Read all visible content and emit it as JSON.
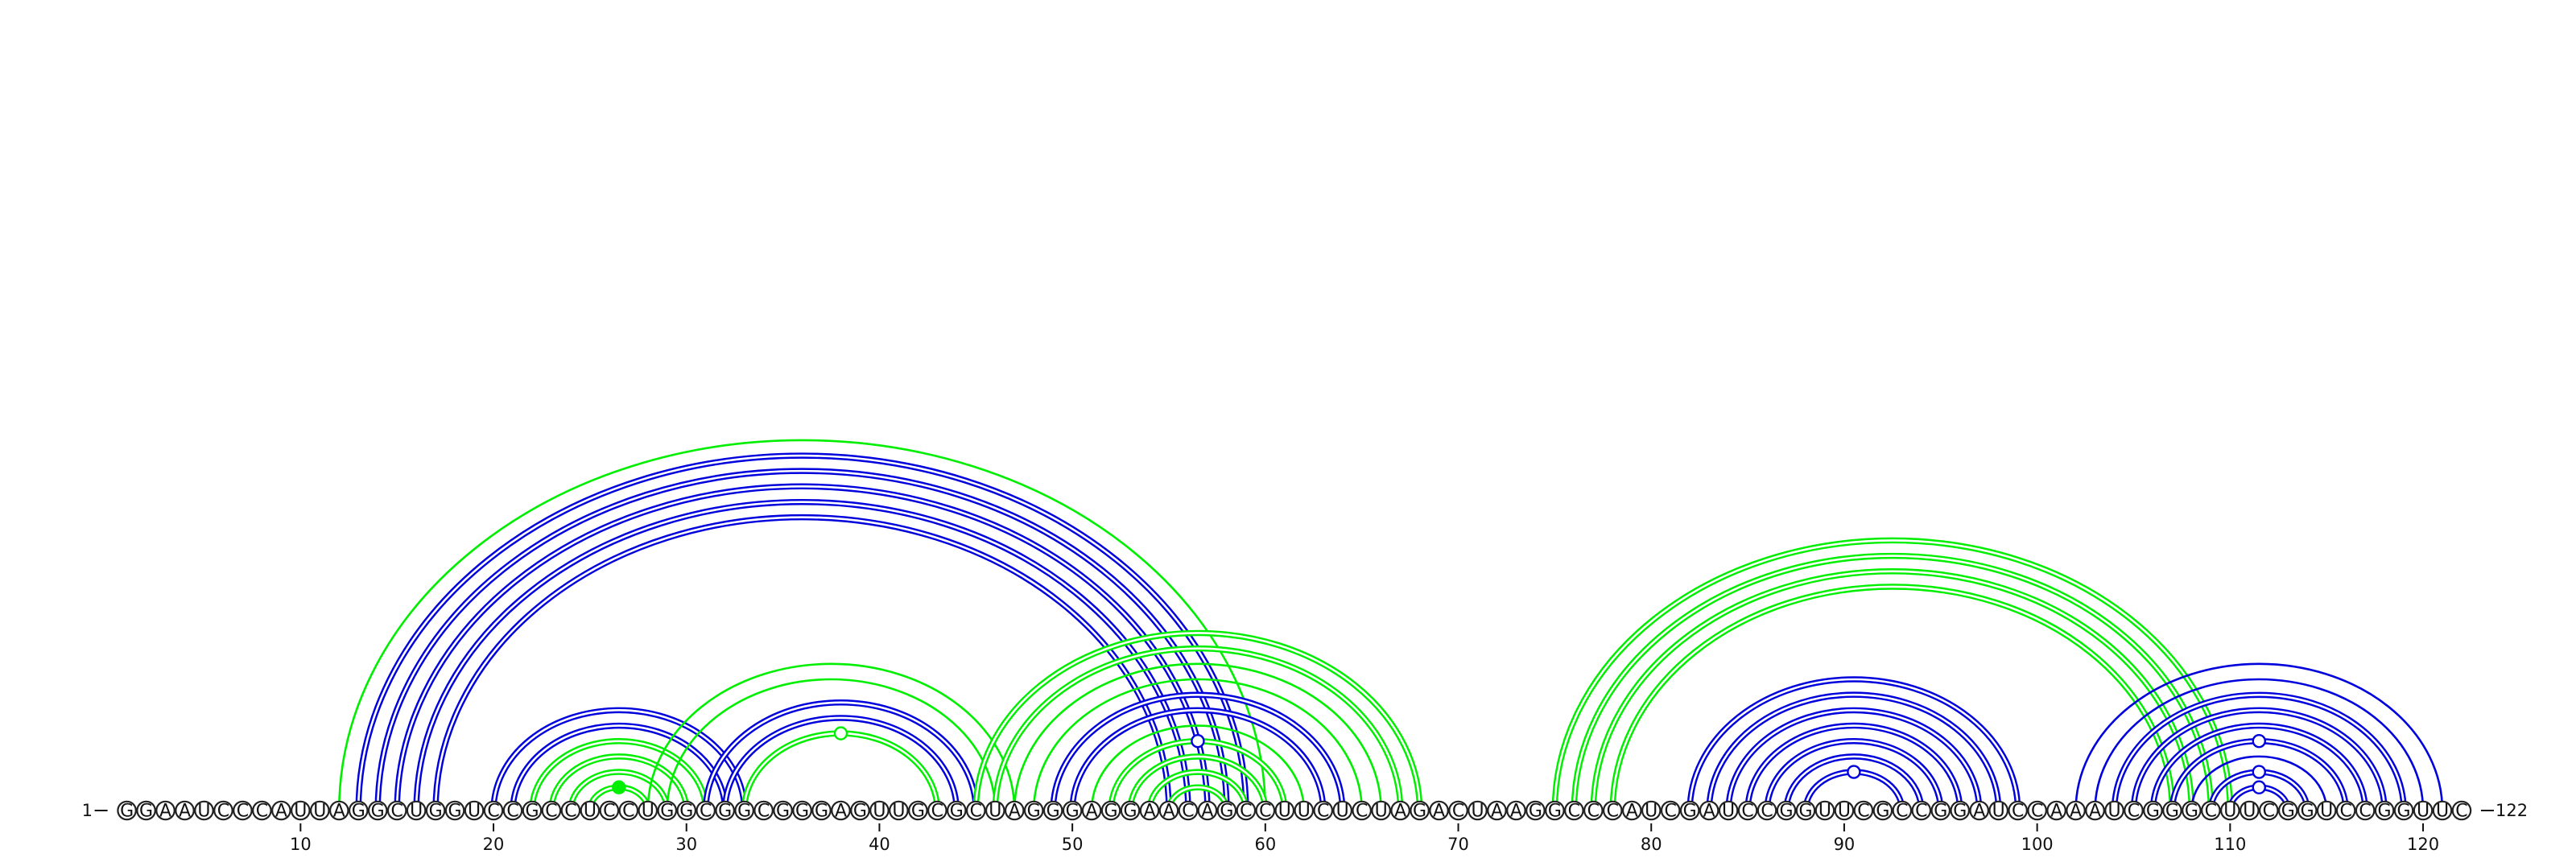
{
  "sequence": "GGAAUCCCAUUAGGCUGGUCCGCCUCCUGGCGGCGGGAGUUGCGCUAGGGAGGAACAGCCUUCUCUAGACUAAGGCCCAUCGAUCCGGUUCGCCGGAUCCAAAUCGGGCUUCGGUCCGGUUC",
  "start_label": "1",
  "end_label": "122",
  "ticks": [
    {
      "position": 10,
      "label": "10"
    },
    {
      "position": 20,
      "label": "20"
    },
    {
      "position": 30,
      "label": "30"
    },
    {
      "position": 40,
      "label": "40"
    },
    {
      "position": 50,
      "label": "50"
    },
    {
      "position": 60,
      "label": "60"
    },
    {
      "position": 70,
      "label": "70"
    },
    {
      "position": 80,
      "label": "80"
    },
    {
      "position": 90,
      "label": "90"
    },
    {
      "position": 100,
      "label": "100"
    },
    {
      "position": 110,
      "label": "110"
    },
    {
      "position": 120,
      "label": "120"
    }
  ],
  "colors": {
    "blue": "#0000dd",
    "green": "#00ee00"
  },
  "arcs": [
    {
      "i": 12,
      "j": 60,
      "color": "green",
      "style": "single"
    },
    {
      "i": 13,
      "j": 59,
      "color": "blue",
      "style": "double"
    },
    {
      "i": 14,
      "j": 58,
      "color": "blue",
      "style": "double"
    },
    {
      "i": 15,
      "j": 57,
      "color": "blue",
      "style": "double"
    },
    {
      "i": 16,
      "j": 56,
      "color": "blue",
      "style": "double"
    },
    {
      "i": 17,
      "j": 55,
      "color": "blue",
      "style": "double"
    },
    {
      "i": 20,
      "j": 33,
      "color": "blue",
      "style": "double"
    },
    {
      "i": 21,
      "j": 32,
      "color": "blue",
      "style": "double"
    },
    {
      "i": 22,
      "j": 31,
      "color": "green",
      "style": "double"
    },
    {
      "i": 23,
      "j": 30,
      "color": "green",
      "style": "double"
    },
    {
      "i": 24,
      "j": 29,
      "color": "green",
      "style": "double"
    },
    {
      "i": 25,
      "j": 28,
      "color": "green",
      "style": "double"
    },
    {
      "i": 28,
      "j": 47,
      "color": "green",
      "style": "single"
    },
    {
      "i": 29,
      "j": 46,
      "color": "green",
      "style": "single"
    },
    {
      "i": 31,
      "j": 45,
      "color": "blue",
      "style": "double"
    },
    {
      "i": 32,
      "j": 44,
      "color": "blue",
      "style": "double"
    },
    {
      "i": 33,
      "j": 43,
      "color": "green",
      "style": "double"
    },
    {
      "i": 45,
      "j": 68,
      "color": "green",
      "style": "double"
    },
    {
      "i": 46,
      "j": 67,
      "color": "green",
      "style": "double"
    },
    {
      "i": 47,
      "j": 66,
      "color": "green",
      "style": "single"
    },
    {
      "i": 48,
      "j": 65,
      "color": "green",
      "style": "single"
    },
    {
      "i": 49,
      "j": 64,
      "color": "blue",
      "style": "double"
    },
    {
      "i": 50,
      "j": 63,
      "color": "blue",
      "style": "double"
    },
    {
      "i": 51,
      "j": 62,
      "color": "green",
      "style": "single"
    },
    {
      "i": 52,
      "j": 61,
      "color": "green",
      "style": "double"
    },
    {
      "i": 53,
      "j": 60,
      "color": "green",
      "style": "double"
    },
    {
      "i": 54,
      "j": 59,
      "color": "green",
      "style": "double"
    },
    {
      "i": 55,
      "j": 58,
      "color": "green",
      "style": "double"
    },
    {
      "i": 75,
      "j": 110,
      "color": "green",
      "style": "double"
    },
    {
      "i": 76,
      "j": 109,
      "color": "green",
      "style": "double"
    },
    {
      "i": 77,
      "j": 108,
      "color": "green",
      "style": "double"
    },
    {
      "i": 78,
      "j": 107,
      "color": "green",
      "style": "double"
    },
    {
      "i": 82,
      "j": 99,
      "color": "blue",
      "style": "double"
    },
    {
      "i": 83,
      "j": 98,
      "color": "blue",
      "style": "double"
    },
    {
      "i": 84,
      "j": 97,
      "color": "blue",
      "style": "double"
    },
    {
      "i": 85,
      "j": 96,
      "color": "blue",
      "style": "double"
    },
    {
      "i": 86,
      "j": 95,
      "color": "blue",
      "style": "double"
    },
    {
      "i": 87,
      "j": 94,
      "color": "blue",
      "style": "double"
    },
    {
      "i": 88,
      "j": 93,
      "color": "blue",
      "style": "double"
    },
    {
      "i": 102,
      "j": 121,
      "color": "blue",
      "style": "single"
    },
    {
      "i": 103,
      "j": 120,
      "color": "blue",
      "style": "single"
    },
    {
      "i": 104,
      "j": 119,
      "color": "blue",
      "style": "double"
    },
    {
      "i": 105,
      "j": 118,
      "color": "blue",
      "style": "double"
    },
    {
      "i": 106,
      "j": 117,
      "color": "blue",
      "style": "double"
    },
    {
      "i": 107,
      "j": 116,
      "color": "blue",
      "style": "double"
    },
    {
      "i": 108,
      "j": 115,
      "color": "blue",
      "style": "single"
    },
    {
      "i": 109,
      "j": 114,
      "color": "blue",
      "style": "double"
    },
    {
      "i": 110,
      "j": 113,
      "color": "blue",
      "style": "double"
    }
  ],
  "apex_markers": [
    {
      "i": 33,
      "j": 43,
      "color": "green",
      "filled": false
    },
    {
      "i": 25,
      "j": 28,
      "color": "green",
      "filled": true
    },
    {
      "i": 52,
      "j": 61,
      "color": "blue",
      "filled": false
    },
    {
      "i": 88,
      "j": 93,
      "color": "blue",
      "filled": false
    },
    {
      "i": 107,
      "j": 116,
      "color": "blue",
      "filled": false
    },
    {
      "i": 109,
      "j": 114,
      "color": "blue",
      "filled": false
    },
    {
      "i": 110,
      "j": 113,
      "color": "blue",
      "filled": false
    }
  ]
}
